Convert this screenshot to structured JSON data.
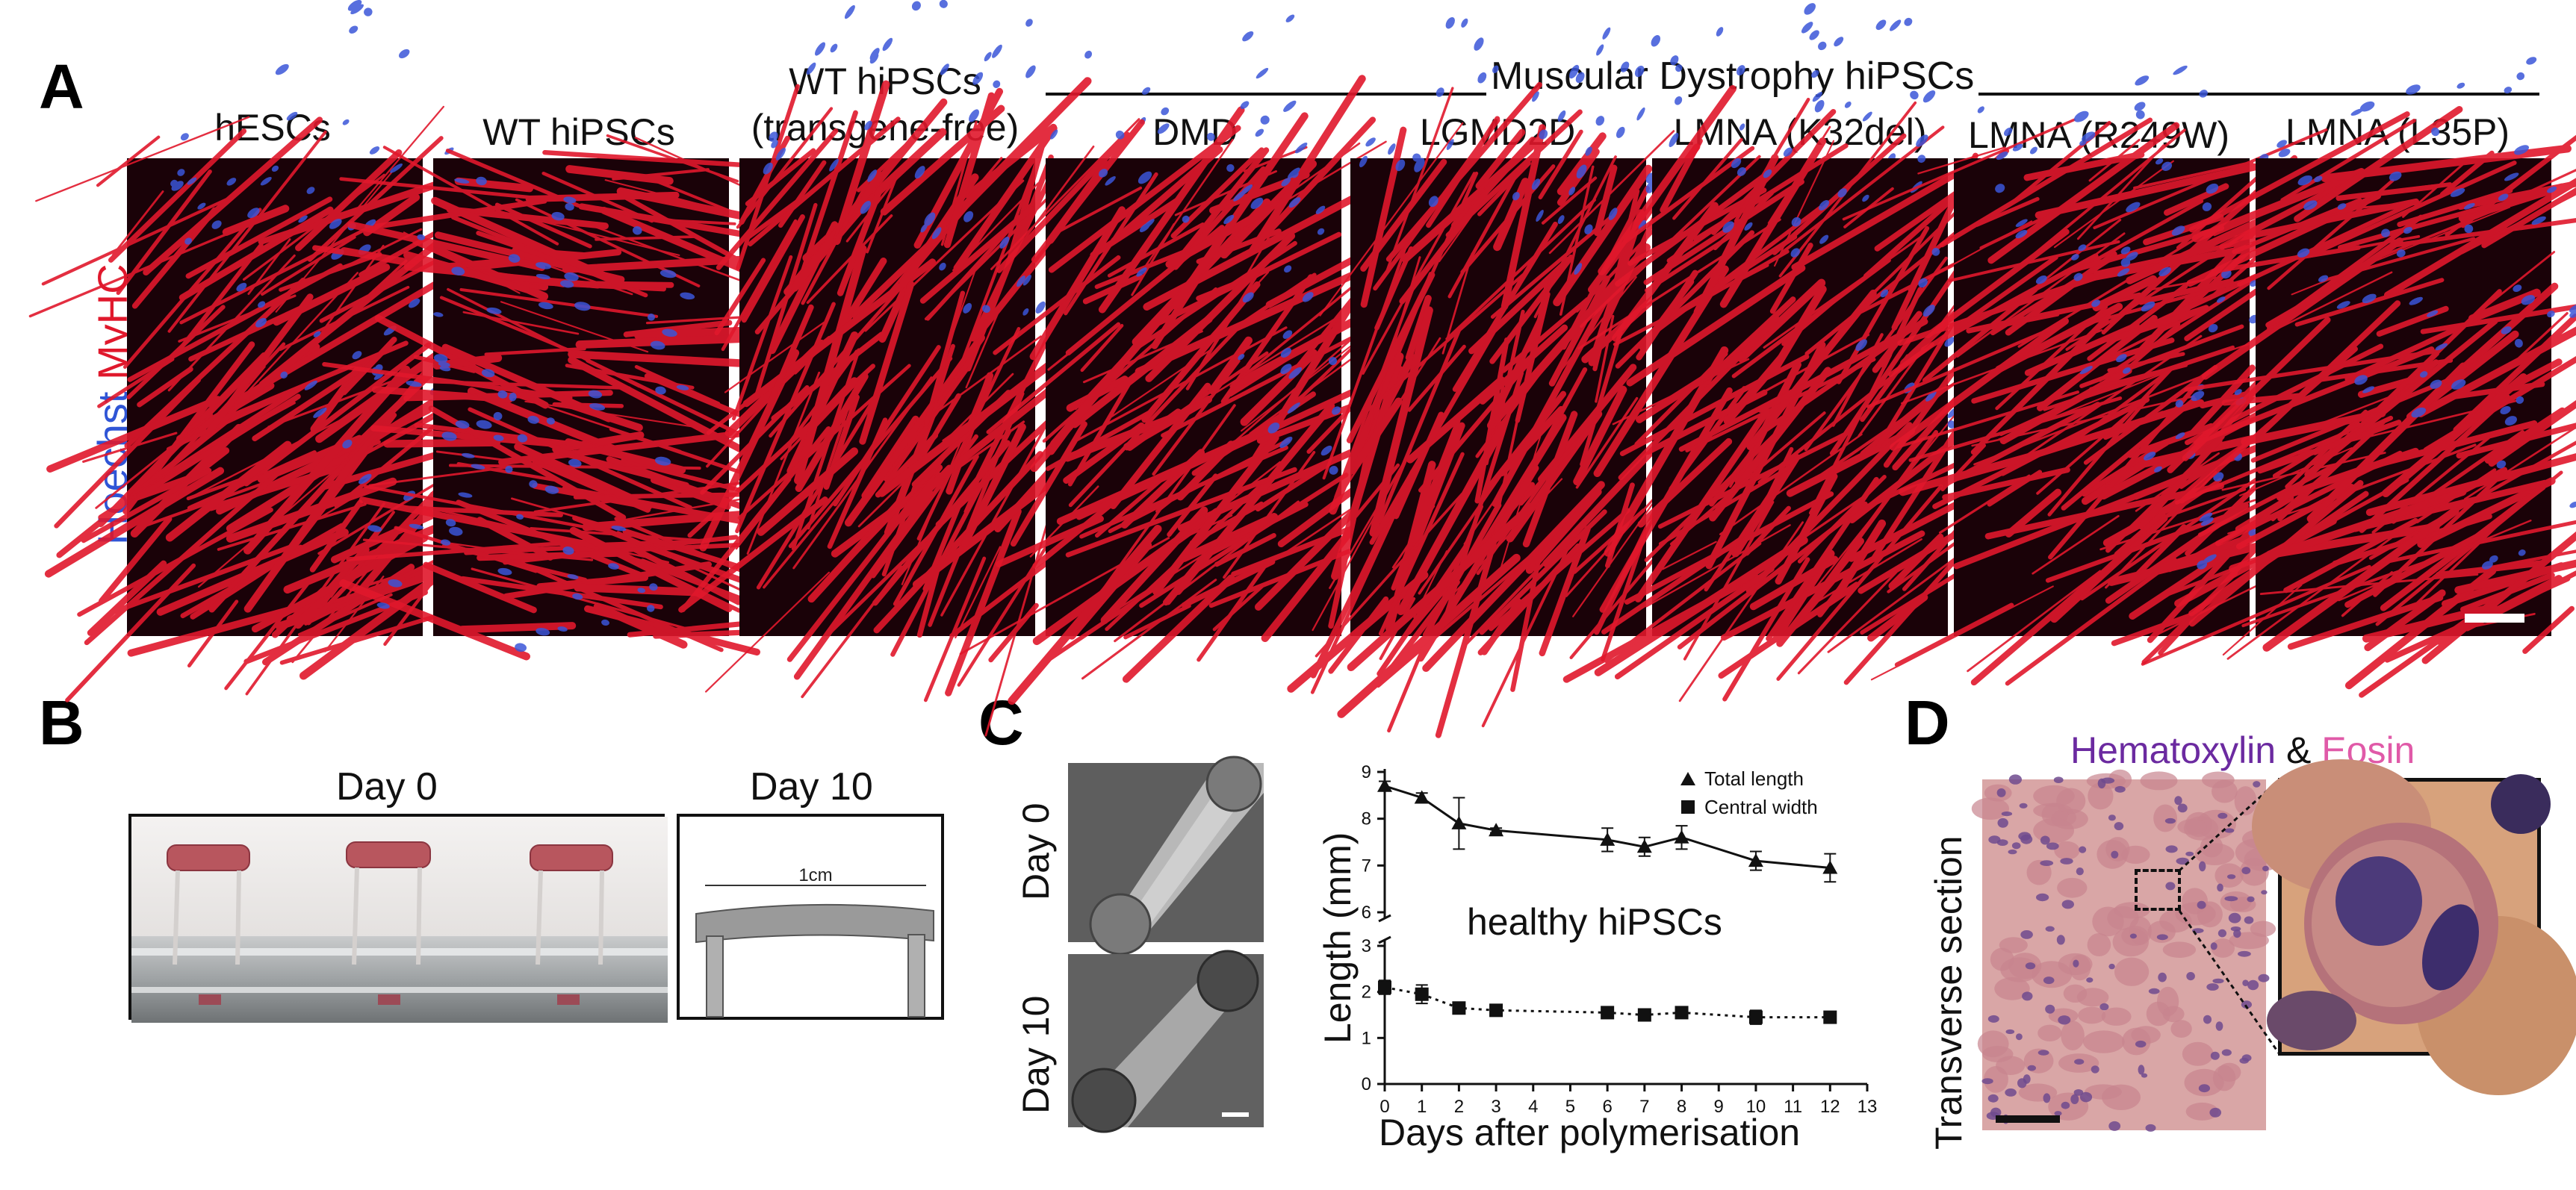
{
  "panels": {
    "A": "A",
    "B": "B",
    "C": "C",
    "D": "D"
  },
  "panel_a": {
    "stain_hoechst": "Hoechst",
    "stain_myhc": "MyHC",
    "group_title": "Muscular Dystrophy hiPSCs",
    "columns": [
      {
        "line1": "hESCs",
        "line2": ""
      },
      {
        "line1": "WT hiPSCs",
        "line2": ""
      },
      {
        "line1": "WT hiPSCs",
        "line2": "(transgene-free)"
      },
      {
        "line1": "DMD",
        "line2": ""
      },
      {
        "line1": "LGMD2D",
        "line2": ""
      },
      {
        "line1": "LMNA (K32del)",
        "line2": ""
      },
      {
        "line1": "LMNA (R249W)",
        "line2": ""
      },
      {
        "line1": "LMNA (L35P)",
        "line2": ""
      }
    ],
    "colors": {
      "myhc": "#e0182c",
      "hoechst": "#3a56d8",
      "background": "#1a0208"
    }
  },
  "panel_b": {
    "day0_label": "Day 0",
    "day10_label": "Day 10",
    "scale_label": "1cm"
  },
  "panel_c": {
    "image_labels": [
      "Day 0",
      "Day 10"
    ],
    "annotation": "healthy hiPSCs",
    "chart_data": {
      "type": "line",
      "xlabel": "Days after polymerisation",
      "ylabel": "Length (mm)",
      "xlim": [
        0,
        13
      ],
      "x_ticks": [
        "0",
        "1",
        "2",
        "3",
        "4",
        "5",
        "6",
        "7",
        "8",
        "9",
        "10",
        "11",
        "12",
        "13"
      ],
      "upper_y_ticks": [
        "6",
        "7",
        "8",
        "9"
      ],
      "lower_y_ticks": [
        "0",
        "1",
        "2",
        "3"
      ],
      "series": [
        {
          "name": "Total length",
          "marker": "triangle",
          "line": "solid",
          "x": [
            0,
            1,
            2,
            3,
            6,
            7,
            8,
            10,
            12
          ],
          "y": [
            8.7,
            8.45,
            7.9,
            7.75,
            7.55,
            7.4,
            7.6,
            7.1,
            6.95
          ],
          "err": [
            0.1,
            0.1,
            0.55,
            0.05,
            0.25,
            0.2,
            0.25,
            0.2,
            0.3
          ]
        },
        {
          "name": "Central width",
          "marker": "square",
          "line": "dotted",
          "x": [
            0,
            1,
            2,
            3,
            6,
            7,
            8,
            10,
            12
          ],
          "y": [
            2.1,
            1.95,
            1.65,
            1.6,
            1.55,
            1.5,
            1.55,
            1.45,
            1.45
          ],
          "err": [
            0.15,
            0.2,
            0.05,
            0.05,
            0.05,
            0.05,
            0.05,
            0.15,
            0.1
          ]
        }
      ]
    }
  },
  "panel_d": {
    "title_hematoxylin": "Hematoxylin",
    "title_amp": "&",
    "title_eosin": "Eosin",
    "side_label": "Transverse section",
    "colors": {
      "hematoxylin": "#6b2aa0",
      "eosin": "#e05aa8"
    }
  }
}
